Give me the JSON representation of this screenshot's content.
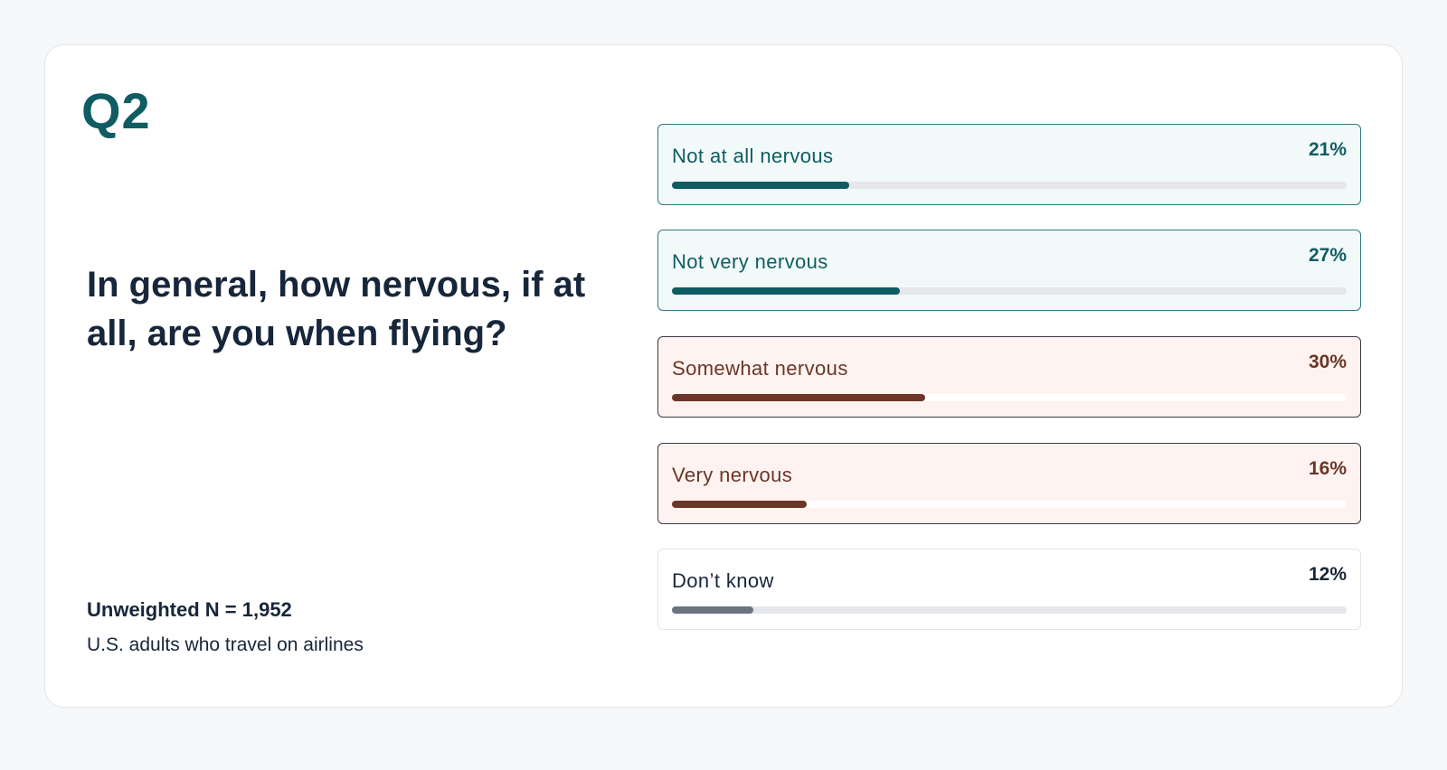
{
  "question_number": "Q2",
  "question": "In general, how nervous, if at all, are you when flying?",
  "sample": "Unweighted N = 1,952",
  "population": "U.S. adults who travel on airlines",
  "colors": {
    "teal": "#0f5c63",
    "brown": "#6b3626",
    "gray": "#6b7280"
  },
  "chart_data": {
    "type": "bar",
    "orientation": "horizontal",
    "categories": [
      "Not at all nervous",
      "Not very nervous",
      "Somewhat nervous",
      "Very nervous",
      "Don’t know"
    ],
    "values": [
      21,
      27,
      30,
      16,
      12
    ],
    "labels": [
      "21%",
      "27%",
      "30%",
      "16%",
      "12%"
    ],
    "groups": [
      "teal",
      "teal",
      "brown",
      "brown",
      "gray"
    ]
  }
}
